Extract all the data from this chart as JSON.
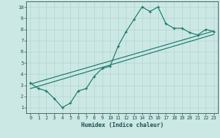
{
  "xlabel": "Humidex (Indice chaleur)",
  "xlim": [
    -0.5,
    23.5
  ],
  "ylim": [
    0.5,
    10.5
  ],
  "xticks": [
    0,
    1,
    2,
    3,
    4,
    5,
    6,
    7,
    8,
    9,
    10,
    11,
    12,
    13,
    14,
    15,
    16,
    17,
    18,
    19,
    20,
    21,
    22,
    23
  ],
  "yticks": [
    1,
    2,
    3,
    4,
    5,
    6,
    7,
    8,
    9,
    10
  ],
  "line_color": "#1a7a6e",
  "bg_color": "#cce8e4",
  "grid_color": "#b0d4ce",
  "line1_x": [
    0,
    1,
    2,
    3,
    4,
    5,
    6,
    7,
    8,
    9,
    10,
    11,
    12,
    13,
    14,
    15,
    16,
    17,
    18,
    19,
    20,
    21,
    22,
    23
  ],
  "line1_y": [
    3.2,
    2.7,
    2.5,
    1.8,
    1.0,
    1.4,
    2.5,
    2.7,
    3.8,
    4.5,
    4.7,
    6.5,
    7.8,
    8.9,
    10.0,
    9.6,
    10.0,
    8.5,
    8.1,
    8.1,
    7.7,
    7.5,
    8.0,
    7.8
  ],
  "line2_x": [
    0,
    23
  ],
  "line2_y": [
    3.1,
    7.85
  ],
  "line3_x": [
    0,
    23
  ],
  "line3_y": [
    2.7,
    7.55
  ],
  "marker_size": 3.5,
  "linewidth": 0.9
}
